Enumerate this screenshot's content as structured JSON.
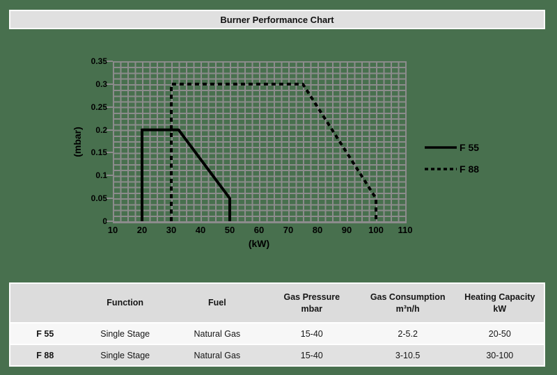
{
  "page": {
    "title": "Burner Performance Chart"
  },
  "colors": {
    "page_bg": "#48704e",
    "grid": "#8c8c8c",
    "panel_bg": "#e0e0e0",
    "table_header_bg": "#dcdcdc",
    "row_odd_bg": "#f7f7f7",
    "row_even_bg": "#e1e1e1",
    "line": "#000000"
  },
  "chart_data": {
    "type": "line",
    "title": "Burner Performance Chart",
    "xlabel": "(kW)",
    "ylabel": "(mbar)",
    "xlim": [
      10,
      110
    ],
    "ylim": [
      0,
      0.35
    ],
    "x_ticks": [
      "10",
      "20",
      "30",
      "40",
      "50",
      "60",
      "70",
      "80",
      "90",
      "100",
      "110"
    ],
    "y_ticks": [
      "0",
      "0.05",
      "0.1",
      "0.15",
      "0.2",
      "0.25",
      "0.3",
      "0.35"
    ],
    "grid": "minor gridlines, 4 subdivisions per major tick, gray on green background",
    "legend_position": "right",
    "series": [
      {
        "name": "F 55",
        "line_style": "solid",
        "color": "#000000",
        "points": [
          [
            20,
            0
          ],
          [
            20,
            0.2
          ],
          [
            32.5,
            0.2
          ],
          [
            50,
            0.05
          ],
          [
            50,
            0
          ]
        ]
      },
      {
        "name": "F 88",
        "line_style": "dashed",
        "color": "#000000",
        "points": [
          [
            30,
            0
          ],
          [
            30,
            0.3
          ],
          [
            75,
            0.3
          ],
          [
            100,
            0.05
          ],
          [
            100,
            0
          ]
        ]
      }
    ]
  },
  "table": {
    "headers": [
      "",
      "Function",
      "Fuel",
      "Gas Pressure\nmbar",
      "Gas Consumption\nm³n/h",
      "Heating Capacity\nkW"
    ],
    "col_widths_percent": [
      13,
      17,
      17.5,
      18,
      18,
      16.5
    ],
    "rows": [
      {
        "model": "F 55",
        "cells": [
          "Single Stage",
          "Natural Gas",
          "15-40",
          "2-5.2",
          "20-50"
        ]
      },
      {
        "model": "F 88",
        "cells": [
          "Single Stage",
          "Natural Gas",
          "15-40",
          "3-10.5",
          "30-100"
        ]
      }
    ]
  }
}
